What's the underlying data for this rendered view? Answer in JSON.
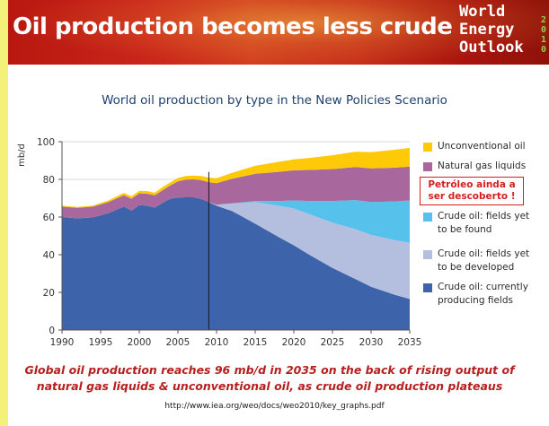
{
  "header": {
    "title": "Oil production becomes less crude",
    "logo_lines": [
      "World",
      "Energy",
      "Outlook"
    ],
    "logo_year": "2010"
  },
  "colors": {
    "unconventional_oil": "#fec907",
    "natural_gas_liquids": "#a8689e",
    "fields_yet_to_be_found": "#56c1ea",
    "fields_yet_to_be_developed": "#b4bfdf",
    "currently_producing_fields": "#3d63aa",
    "caption": "#b51f1f",
    "callout": "#d61f1f",
    "title": "#1f3f6b"
  },
  "callout_text": [
    "Petróleo ainda a",
    "ser descoberto !"
  ],
  "caption_lines": [
    "Global oil production reaches 96 mb/d in 2035 on the back of rising output of",
    "natural gas liquids & unconventional oil, as crude oil production plateaus"
  ],
  "source_url": "http://www.iea.org/weo/docs/weo2010/key_graphs.pdf",
  "chart_data": {
    "type": "area",
    "title": "World oil production by type in the New Policies Scenario",
    "ylabel": "mb/d",
    "xlabel": "",
    "xlim": [
      1990,
      2035
    ],
    "ylim": [
      0,
      100
    ],
    "x_ticks": [
      1990,
      1995,
      2000,
      2005,
      2010,
      2015,
      2020,
      2025,
      2030,
      2035
    ],
    "y_ticks": [
      0,
      20,
      40,
      60,
      80,
      100
    ],
    "grid": "horizontal",
    "legend_position": "right",
    "stacked": true,
    "divider_year": 2009,
    "x": [
      1990,
      1992,
      1994,
      1996,
      1998,
      1999,
      2000,
      2001,
      2002,
      2003,
      2004,
      2005,
      2006,
      2007,
      2008,
      2009,
      2010,
      2012,
      2015,
      2018,
      2020,
      2022,
      2025,
      2028,
      2030,
      2033,
      2035
    ],
    "series": [
      {
        "name": "Crude oil: currently producing fields",
        "color_key": "currently_producing_fields",
        "values": [
          60.0,
          59.3,
          59.8,
          62.0,
          65.5,
          63.5,
          66.3,
          66.0,
          65.0,
          67.5,
          69.7,
          70.4,
          70.5,
          70.5,
          69.6,
          68.0,
          66.0,
          63.2,
          56.5,
          49.5,
          45.0,
          40.0,
          33.0,
          27.0,
          23.0,
          18.8,
          16.5
        ]
      },
      {
        "name": "Crude oil: fields yet to be developed",
        "color_key": "fields_yet_to_be_developed",
        "values": [
          0,
          0,
          0,
          0,
          0,
          0,
          0,
          0,
          0,
          0,
          0,
          0,
          0,
          0,
          0,
          0,
          0.5,
          4.0,
          11.5,
          16.5,
          19.5,
          21.5,
          24.0,
          26.5,
          27.5,
          29.0,
          29.8
        ]
      },
      {
        "name": "Crude oil: fields yet to be found",
        "color_key": "fields_yet_to_be_found",
        "values": [
          0,
          0,
          0,
          0,
          0,
          0,
          0,
          0,
          0,
          0,
          0,
          0,
          0,
          0,
          0,
          0,
          0,
          0.1,
          0.5,
          2.5,
          4.3,
          7.0,
          11.5,
          15.5,
          17.5,
          20.5,
          22.5
        ]
      },
      {
        "name": "Natural gas liquids",
        "color_key": "natural_gas_liquids",
        "values": [
          5.5,
          5.6,
          5.7,
          5.9,
          6.1,
          6.2,
          6.3,
          6.4,
          6.5,
          6.7,
          7.0,
          8.5,
          9.4,
          9.5,
          10.0,
          10.5,
          11.5,
          13.0,
          14.5,
          15.5,
          16.0,
          16.5,
          17.0,
          17.5,
          17.8,
          17.9,
          18.0
        ]
      },
      {
        "name": "Unconventional oil",
        "color_key": "unconventional_oil",
        "values": [
          0.5,
          0.5,
          0.6,
          0.9,
          1.2,
          1.3,
          1.3,
          1.4,
          1.4,
          1.6,
          1.7,
          1.8,
          1.9,
          2.0,
          2.2,
          2.4,
          2.6,
          3.2,
          4.2,
          5.3,
          5.8,
          6.4,
          7.3,
          8.2,
          8.7,
          9.5,
          9.9
        ]
      }
    ],
    "legend_order": [
      "Unconventional oil",
      "Natural gas liquids",
      "Crude oil: fields yet to be found",
      "Crude oil: fields yet to be developed",
      "Crude oil: currently producing fields"
    ],
    "legend_display_lines": [
      [
        "Unconventional oil"
      ],
      [
        "Natural gas liquids"
      ],
      [
        "Crude oil: fields yet",
        "to be found"
      ],
      [
        "Crude oil: fields yet",
        "to be developed"
      ],
      [
        "Crude oil: currently",
        "producing fields"
      ]
    ]
  }
}
